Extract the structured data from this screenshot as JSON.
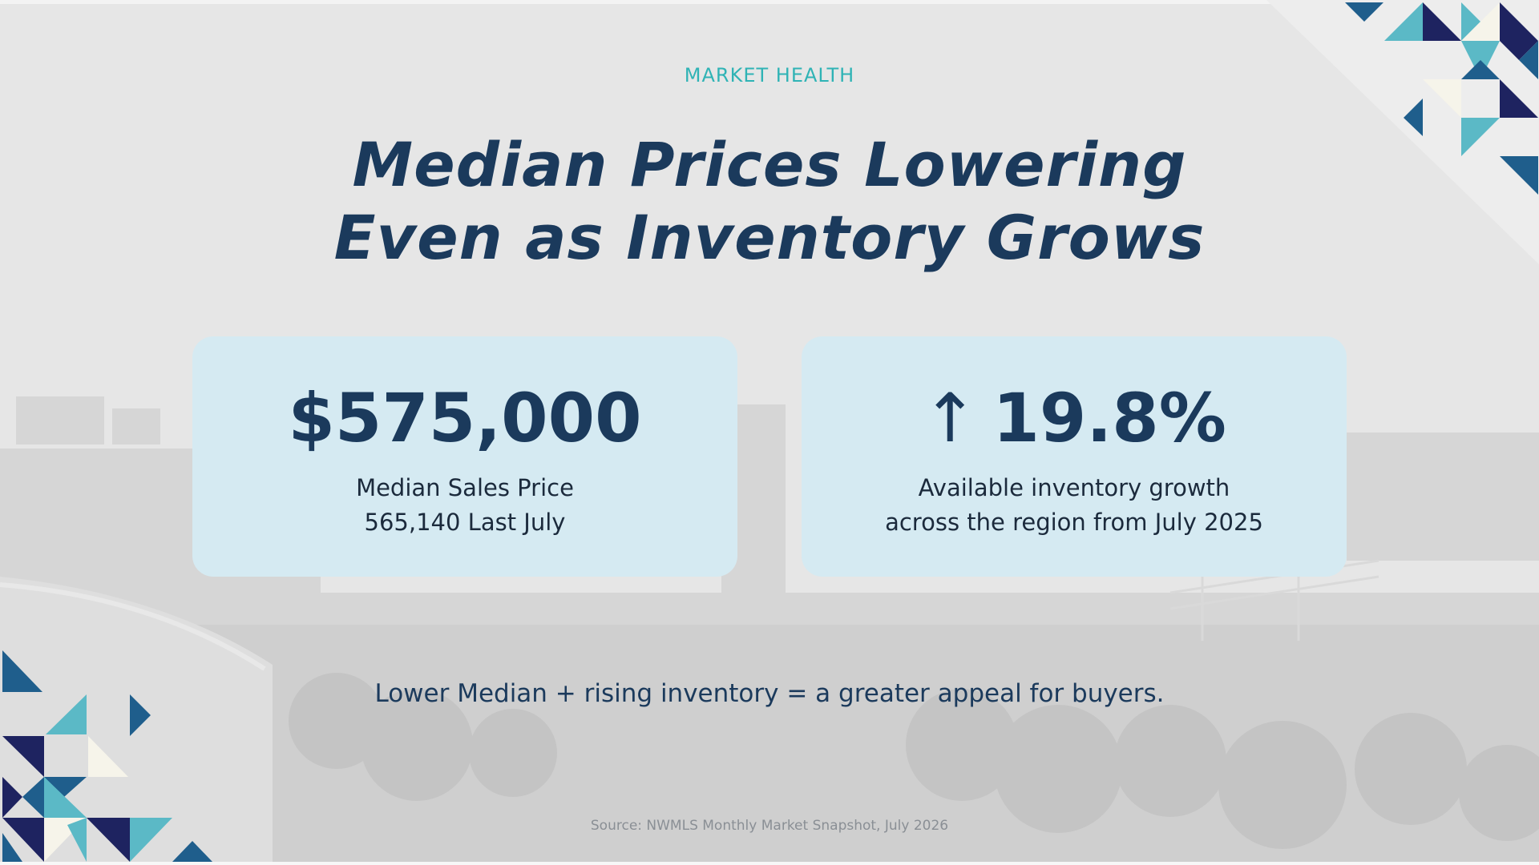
{
  "eyebrow": "MARKET HEALTH",
  "headline": {
    "line1": "Median Prices Lowering",
    "line2": "Even as Inventory Grows"
  },
  "cards": [
    {
      "value": "$575,000",
      "desc_line1": "Median Sales Price",
      "desc_line2": "565,140 Last July"
    },
    {
      "arrow": "↑",
      "value": "19.8%",
      "desc_line1": "Available inventory growth",
      "desc_line2": "across the region from July 2025"
    }
  ],
  "tagline": "Lower Median + rising inventory = a greater appeal for buyers.",
  "source": "Source: NWMLS Monthly Market Snapshot, July 2026",
  "colors": {
    "navy": "#1b3a5c",
    "deep_navy": "#1e2360",
    "teal": "#2fb3b5",
    "light_teal": "#5bb9c6",
    "blue": "#1f5e8c",
    "cream": "#f6f4ea",
    "card_bg": "#d5eaf2",
    "page_bg": "#e6e6e6"
  },
  "icons": [
    "up-arrow-icon"
  ]
}
